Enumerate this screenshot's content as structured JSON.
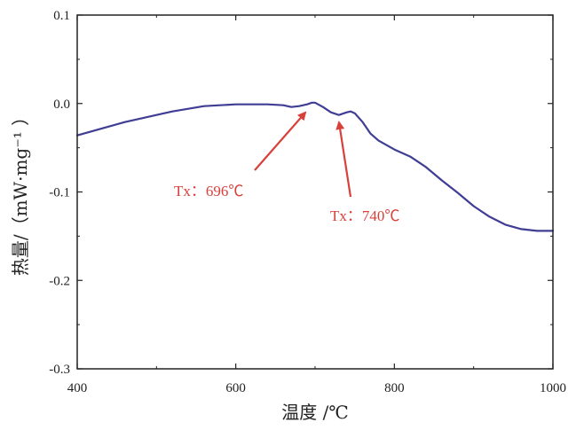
{
  "colors": {
    "series": "#3f3d94",
    "annotation": "#d8403a",
    "axis": "#222222"
  },
  "chart_data": {
    "type": "line",
    "title": "",
    "xlabel": "温度 /℃",
    "ylabel": "热量/（mW·mg⁻¹ ）",
    "xlim": [
      400,
      1000
    ],
    "ylim": [
      -0.3,
      0.1
    ],
    "x_ticks": [
      "400",
      "600",
      "800",
      "1000"
    ],
    "y_ticks": [
      "0.1",
      "0.0",
      "-0.1",
      "-0.2",
      "-0.3"
    ],
    "x_tick_values": [
      400,
      600,
      800,
      1000
    ],
    "y_tick_values": [
      0.1,
      0.0,
      -0.1,
      -0.2,
      -0.3
    ],
    "grid": false,
    "series": [
      {
        "x": [
          400,
          420,
          440,
          460,
          480,
          500,
          520,
          540,
          560,
          580,
          600,
          620,
          640,
          660,
          670,
          680,
          690,
          696,
          700,
          710,
          720,
          730,
          740,
          745,
          750,
          760,
          770,
          780,
          800,
          820,
          840,
          860,
          880,
          900,
          920,
          940,
          960,
          980,
          1000
        ],
        "y": [
          -0.036,
          -0.031,
          -0.026,
          -0.021,
          -0.017,
          -0.013,
          -0.009,
          -0.006,
          -0.003,
          -0.002,
          -0.001,
          -0.001,
          -0.001,
          -0.002,
          -0.004,
          -0.003,
          -0.001,
          0.001,
          0.001,
          -0.004,
          -0.01,
          -0.013,
          -0.01,
          -0.009,
          -0.011,
          -0.021,
          -0.034,
          -0.042,
          -0.052,
          -0.06,
          -0.072,
          -0.087,
          -0.101,
          -0.116,
          -0.128,
          -0.137,
          -0.142,
          -0.144,
          -0.144
        ]
      }
    ],
    "annotations": [
      {
        "text": "Tx：696℃",
        "x": 696
      },
      {
        "text": "Tx：740℃",
        "x": 740
      }
    ]
  }
}
